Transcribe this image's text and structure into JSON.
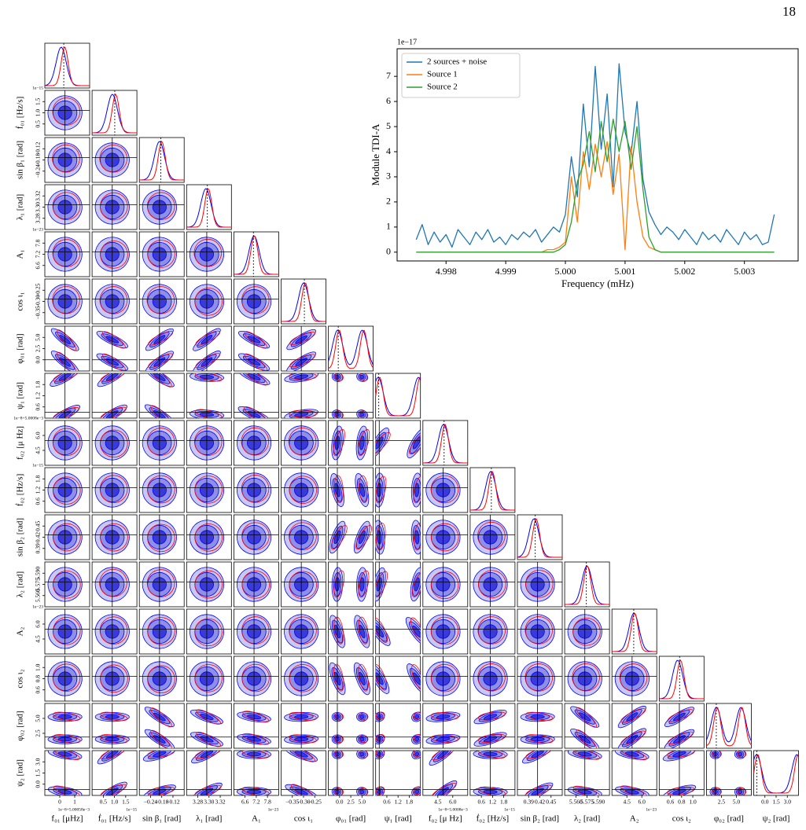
{
  "page_number": "18",
  "corner_plot": {
    "parameters": [
      {
        "label": "f₀₁ [μHz]",
        "ticks": [
          "0",
          "1"
        ],
        "offset": "1e−8+5.00058e−3"
      },
      {
        "label": "ḟ₀₁ [Hz/s]",
        "ticks": [
          "0.5",
          "1.0",
          "1.5"
        ],
        "offset": "1e−15"
      },
      {
        "label": "sin β₁ [rad]",
        "ticks": [
          "−0.24",
          "−0.18",
          "−0.12"
        ]
      },
      {
        "label": "λ₁ [rad]",
        "ticks": [
          "3.28",
          "3.30",
          "3.32"
        ]
      },
      {
        "label": "A₁",
        "ticks": [
          "6.6",
          "7.2",
          "7.8"
        ],
        "offset": "1e−23"
      },
      {
        "label": "cos ι₁",
        "ticks": [
          "−0.35",
          "−0.30",
          "−0.25"
        ]
      },
      {
        "label": "φ₀₁ [rad]",
        "ticks": [
          "0.0",
          "2.5",
          "5.0"
        ]
      },
      {
        "label": "ψ₁ [rad]",
        "ticks": [
          "0.6",
          "1.2",
          "1.8"
        ]
      },
      {
        "label": "f₀₂ [μ Hz]",
        "ticks": [
          "4.5",
          "6.0"
        ],
        "offset": "1e−8+5.0008e−3"
      },
      {
        "label": "ḟ₀₂ [Hz/s]",
        "ticks": [
          "0.6",
          "1.2",
          "1.8"
        ],
        "offset": "1e−15"
      },
      {
        "label": "sin β₂ [rad]",
        "ticks": [
          "0.39",
          "0.42",
          "0.45"
        ]
      },
      {
        "label": "λ₂ [rad]",
        "ticks": [
          "5.560",
          "5.575",
          "5.590"
        ]
      },
      {
        "label": "A₂",
        "ticks": [
          "4.5",
          "6.0"
        ],
        "offset": "1e−23"
      },
      {
        "label": "cos ι₂",
        "ticks": [
          "0.6",
          "0.8",
          "1.0"
        ]
      },
      {
        "label": "φ₀₂ [rad]",
        "ticks": [
          "2.5",
          "5.0"
        ]
      },
      {
        "label": "ψ₂ [rad]",
        "ticks": [
          "0.0",
          "1.5",
          "3.0"
        ]
      }
    ]
  },
  "chart_data": {
    "type": "line",
    "x_label": "Frequency (mHz)",
    "y_label": "Module TDI-A",
    "y_offset": "1e−17",
    "x": [
      4.9975,
      4.9976,
      4.9977,
      4.9978,
      4.9979,
      4.998,
      4.9981,
      4.9982,
      4.9983,
      4.9984,
      4.9985,
      4.9986,
      4.9987,
      4.9988,
      4.9989,
      4.999,
      4.9991,
      4.9992,
      4.9993,
      4.9994,
      4.9995,
      4.9996,
      4.9997,
      4.9998,
      4.9999,
      5.0,
      5.0001,
      5.0002,
      5.0003,
      5.0004,
      5.0005,
      5.0006,
      5.0007,
      5.0008,
      5.0009,
      5.001,
      5.0011,
      5.0012,
      5.0013,
      5.0014,
      5.0015,
      5.0016,
      5.0017,
      5.0018,
      5.0019,
      5.002,
      5.0021,
      5.0022,
      5.0023,
      5.0024,
      5.0025,
      5.0026,
      5.0027,
      5.0028,
      5.0029,
      5.003,
      5.0031,
      5.0032,
      5.0033,
      5.0034,
      5.0035
    ],
    "series": [
      {
        "name": "2 sources + noise",
        "color": "#1f77b4",
        "values": [
          0.5,
          1.1,
          0.3,
          0.8,
          0.4,
          0.7,
          0.2,
          0.9,
          0.6,
          0.3,
          0.8,
          0.5,
          0.9,
          0.4,
          0.6,
          0.3,
          0.7,
          0.5,
          0.8,
          0.6,
          0.9,
          0.4,
          0.7,
          1.0,
          0.8,
          1.5,
          3.8,
          2.2,
          5.9,
          3.4,
          7.4,
          4.1,
          6.3,
          2.6,
          7.5,
          4.8,
          3.9,
          6.0,
          2.9,
          1.6,
          1.1,
          0.7,
          1.0,
          0.8,
          0.5,
          0.9,
          0.6,
          0.3,
          0.8,
          0.5,
          0.7,
          0.4,
          0.9,
          0.6,
          0.3,
          0.8,
          0.5,
          0.7,
          0.3,
          0.4,
          1.5
        ]
      },
      {
        "name": "Source 1",
        "color": "#ff7f0e",
        "values": [
          null,
          null,
          null,
          null,
          null,
          null,
          null,
          null,
          null,
          null,
          null,
          null,
          null,
          null,
          null,
          null,
          null,
          null,
          null,
          null,
          null,
          0,
          0.1,
          0.1,
          0.2,
          0.4,
          3.0,
          1.2,
          4.0,
          2.5,
          4.3,
          3.0,
          4.4,
          2.3,
          3.9,
          0.1,
          4.2,
          2.0,
          0.6,
          0.2,
          0.1,
          0,
          null,
          null,
          null,
          null,
          null,
          null,
          null,
          null,
          null,
          null,
          null,
          null,
          null,
          null,
          null,
          null,
          null,
          null,
          null
        ]
      },
      {
        "name": "Source 2",
        "color": "#2ca02c",
        "values": [
          0,
          0,
          0,
          0,
          0,
          0,
          0,
          0,
          0,
          0,
          0,
          0,
          0,
          0,
          0,
          0,
          0,
          0,
          0,
          0,
          0,
          0,
          0,
          0,
          0.1,
          0.3,
          1.2,
          2.8,
          3.5,
          4.8,
          3.2,
          5.2,
          3.6,
          5.3,
          4.0,
          5.2,
          3.3,
          5.0,
          2.5,
          0.6,
          0.1,
          0,
          0,
          0,
          0,
          0,
          0,
          0,
          0,
          0,
          0,
          0,
          0,
          0,
          0,
          0,
          0,
          0,
          0,
          0,
          0
        ]
      }
    ],
    "xlim": [
      4.99718,
      5.0039
    ],
    "ylim": [
      -0.35,
      8.1
    ],
    "xticks": [
      4.998,
      4.999,
      {
        "value": 5,
        "label": "5.000"
      },
      5.001,
      5.002,
      5.003
    ],
    "yticks": [
      0,
      1,
      2,
      3,
      4,
      5,
      6,
      7
    ],
    "legend": "upper left",
    "grid": false
  }
}
